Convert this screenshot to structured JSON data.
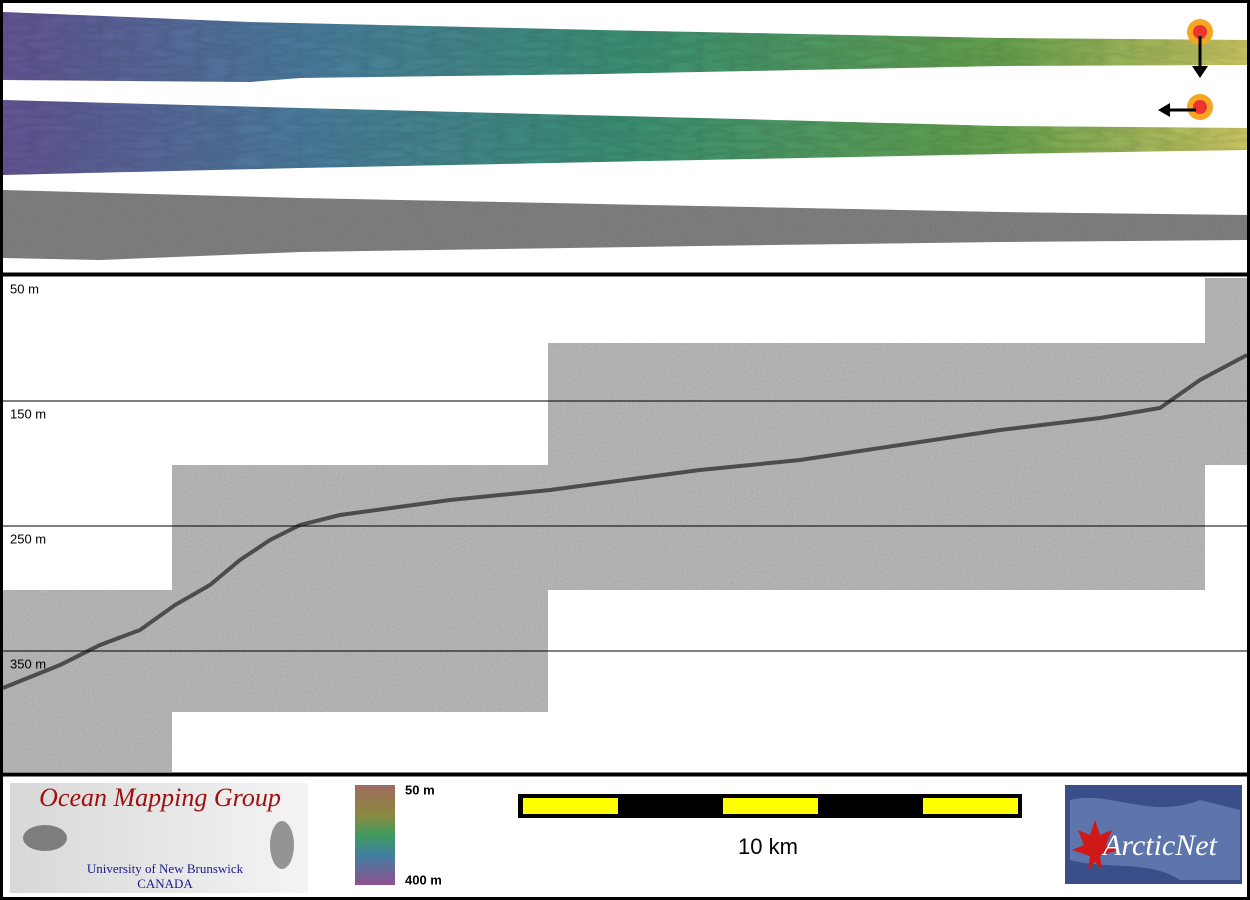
{
  "profile": {
    "depth_labels": [
      "50 m",
      "150 m",
      "250 m",
      "350 m"
    ]
  },
  "footer": {
    "logo": {
      "title": "Ocean Mapping Group",
      "university": "University of New Brunswick",
      "country": "CANADA"
    },
    "colorbar": {
      "top_label": "50 m",
      "bottom_label": "400 m"
    },
    "scale_bar": {
      "label": "10 km"
    },
    "partner_logo": "ArcticNet"
  }
}
